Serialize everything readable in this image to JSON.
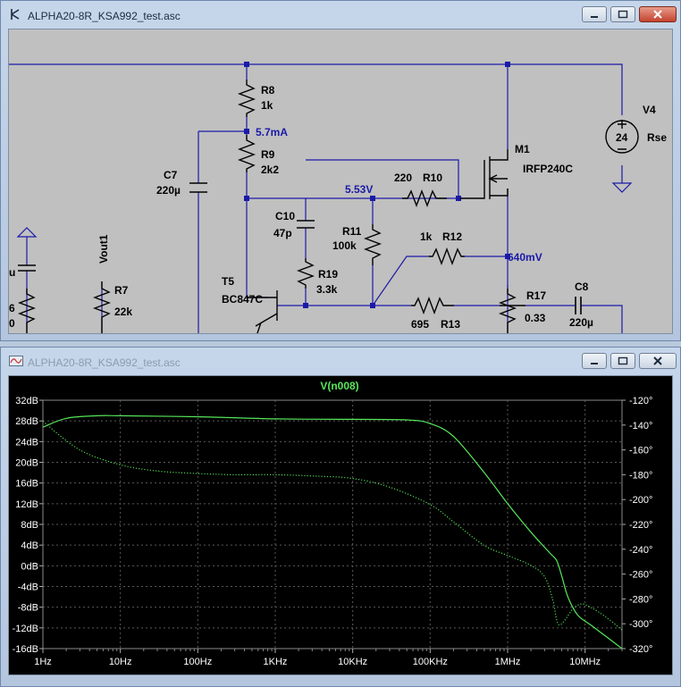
{
  "schematic_window": {
    "title": "ALPHA20-8R_KSA992_test.asc",
    "buttons": {
      "minimize": "minimize",
      "maximize": "maximize",
      "close": "close"
    },
    "components": [
      {
        "ref": "R8",
        "value": "1k"
      },
      {
        "ref": "R9",
        "value": "2k2"
      },
      {
        "ref": "C7",
        "value": "220µ"
      },
      {
        "ref": "C10",
        "value": "47p"
      },
      {
        "ref": "R11",
        "value": "100k"
      },
      {
        "ref": "R19",
        "value": "3.3k"
      },
      {
        "ref": "T5",
        "value": "BC847C"
      },
      {
        "ref": "R7",
        "value": "22k"
      },
      {
        "ref": "R10",
        "value": "220"
      },
      {
        "ref": "R12",
        "value": "1k"
      },
      {
        "ref": "R13",
        "value": "695"
      },
      {
        "ref": "R17",
        "value": "0.33"
      },
      {
        "ref": "C8",
        "value": "220µ"
      },
      {
        "ref": "M1",
        "value": "IRFP240C"
      },
      {
        "ref": "V4",
        "value": "24"
      }
    ],
    "labels": {
      "vout": "Vout1",
      "rse": "Rse",
      "partial_left_top": "u",
      "partial_left_mid": "6",
      "partial_left_bottom": "0"
    },
    "annotations": [
      "5.7mA",
      "5.53V",
      "640mV"
    ]
  },
  "waveform_window": {
    "title": "ALPHA20-8R_KSA992_test.asc",
    "trace_name": "V(n008)",
    "buttons": {
      "minimize": "minimize",
      "maximize": "maximize",
      "close": "close"
    }
  },
  "chart_data": {
    "type": "line",
    "title": "V(n008)",
    "x_scale": "log",
    "x_ticks": [
      "1Hz",
      "10Hz",
      "100Hz",
      "1KHz",
      "10KHz",
      "100KHz",
      "1MHz",
      "10MHz"
    ],
    "xlim": [
      1,
      30000000
    ],
    "y_left_ticks": [
      "32dB",
      "28dB",
      "24dB",
      "20dB",
      "16dB",
      "12dB",
      "8dB",
      "4dB",
      "0dB",
      "-4dB",
      "-8dB",
      "-12dB",
      "-16dB"
    ],
    "y_left_range": [
      -16,
      32
    ],
    "y_right_ticks": [
      "-120°",
      "-140°",
      "-160°",
      "-180°",
      "-200°",
      "-220°",
      "-240°",
      "-260°",
      "-280°",
      "-300°",
      "-320°"
    ],
    "y_right_range": [
      -320,
      -120
    ],
    "grid": true,
    "colors": {
      "trace": "#57e65a",
      "background": "#000000",
      "grid": "#5a5a5a",
      "title": "#57e65a",
      "axis_text": "#ffffff"
    },
    "series": [
      {
        "name": "V(n008)",
        "axis": "magnitude_dB",
        "style": "solid",
        "points": [
          [
            1,
            26.8
          ],
          [
            2,
            28.5
          ],
          [
            5,
            29.0
          ],
          [
            10,
            29.0
          ],
          [
            100,
            28.8
          ],
          [
            1000,
            28.4
          ],
          [
            10000,
            28.3
          ],
          [
            50000,
            28.2
          ],
          [
            100000,
            27.5
          ],
          [
            200000,
            25
          ],
          [
            500000,
            18
          ],
          [
            1000000,
            12
          ],
          [
            2000000,
            6.5
          ],
          [
            3500000,
            2.5
          ],
          [
            4300000,
            1.0
          ],
          [
            5000000,
            -2
          ],
          [
            6000000,
            -6
          ],
          [
            8000000,
            -9.5
          ],
          [
            12000000,
            -11.5
          ],
          [
            20000000,
            -14
          ],
          [
            30000000,
            -16
          ]
        ]
      },
      {
        "name": "V(n008)",
        "axis": "phase_deg",
        "style": "dotted",
        "points": [
          [
            1,
            -137
          ],
          [
            3,
            -160
          ],
          [
            10,
            -172
          ],
          [
            30,
            -177
          ],
          [
            100,
            -179
          ],
          [
            300,
            -180
          ],
          [
            1000,
            -180
          ],
          [
            3000,
            -181
          ],
          [
            10000,
            -183
          ],
          [
            30000,
            -190
          ],
          [
            100000,
            -204
          ],
          [
            200000,
            -218
          ],
          [
            500000,
            -237
          ],
          [
            1000000,
            -245
          ],
          [
            2000000,
            -253
          ],
          [
            3000000,
            -262
          ],
          [
            3800000,
            -280
          ],
          [
            4300000,
            -297
          ],
          [
            4700000,
            -301
          ],
          [
            5500000,
            -297
          ],
          [
            7000000,
            -288
          ],
          [
            9000000,
            -284
          ],
          [
            12000000,
            -287
          ],
          [
            18000000,
            -294
          ],
          [
            30000000,
            -305
          ]
        ]
      }
    ]
  }
}
